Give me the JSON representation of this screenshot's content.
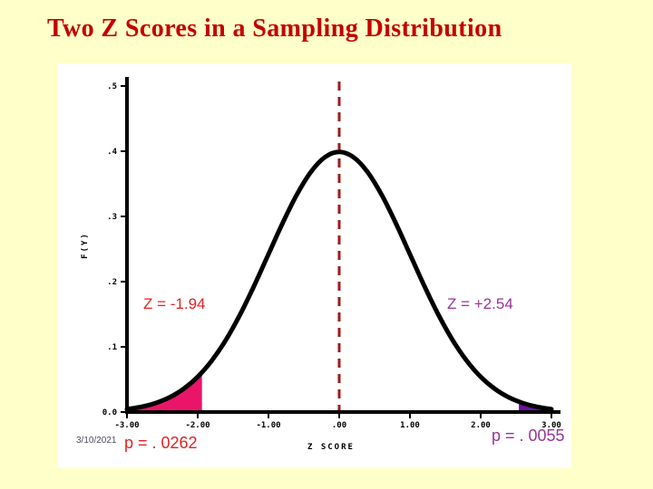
{
  "slide": {
    "title": "Two Z Scores in a Sampling Distribution",
    "title_color": "#C40000",
    "background_color": "#FFFFC9",
    "date": "3/10/2021"
  },
  "chart_data": {
    "type": "area",
    "title": "",
    "xlabel": "Z SCORE",
    "ylabel": "F(Y)",
    "xlim": [
      -3,
      3
    ],
    "ylim": [
      0,
      0.5
    ],
    "grid": false,
    "x_ticks": [
      -3,
      -2,
      -1,
      0,
      1,
      2,
      3
    ],
    "x_tick_labels": [
      "-3.00",
      "-2.00",
      "-1.00",
      ".00",
      "1.00",
      "2.00",
      "3.00"
    ],
    "y_ticks": [
      0,
      0.1,
      0.2,
      0.3,
      0.4,
      0.5
    ],
    "y_tick_labels": [
      "0.0",
      ".1",
      ".2",
      ".3",
      ".4",
      ".5"
    ],
    "curve_color": "#000000",
    "axis_color": "#000000",
    "curve": {
      "name": "standard-normal-pdf",
      "x": [
        -3,
        -2.8,
        -2.6,
        -2.4,
        -2.2,
        -2,
        -1.8,
        -1.6,
        -1.4,
        -1.2,
        -1,
        -0.8,
        -0.6,
        -0.4,
        -0.2,
        0,
        0.2,
        0.4,
        0.6,
        0.8,
        1,
        1.2,
        1.4,
        1.6,
        1.8,
        2,
        2.2,
        2.4,
        2.6,
        2.8,
        3
      ],
      "y": [
        0.0044,
        0.0079,
        0.0136,
        0.0224,
        0.0355,
        0.054,
        0.079,
        0.1109,
        0.1497,
        0.1942,
        0.242,
        0.2897,
        0.3332,
        0.3683,
        0.391,
        0.3989,
        0.391,
        0.3683,
        0.3332,
        0.2897,
        0.242,
        0.1942,
        0.1497,
        0.1109,
        0.079,
        0.054,
        0.0355,
        0.0224,
        0.0136,
        0.0079,
        0.0044
      ]
    },
    "center_line": {
      "z": 0,
      "style": "dashed",
      "color": "#9E1B1B"
    },
    "shaded_regions": [
      {
        "side": "left",
        "z": -1.94,
        "z_label": "Z = -1.94",
        "p": 0.0262,
        "p_label": "p = . 0262",
        "fill_color": "#EA1568",
        "text_color": "#E32222"
      },
      {
        "side": "right",
        "z": 2.54,
        "z_label": "Z = +2.54",
        "p": 0.0055,
        "p_label": "p = . 0055",
        "fill_color": "#6E0FA5",
        "text_color": "#993399"
      }
    ]
  }
}
